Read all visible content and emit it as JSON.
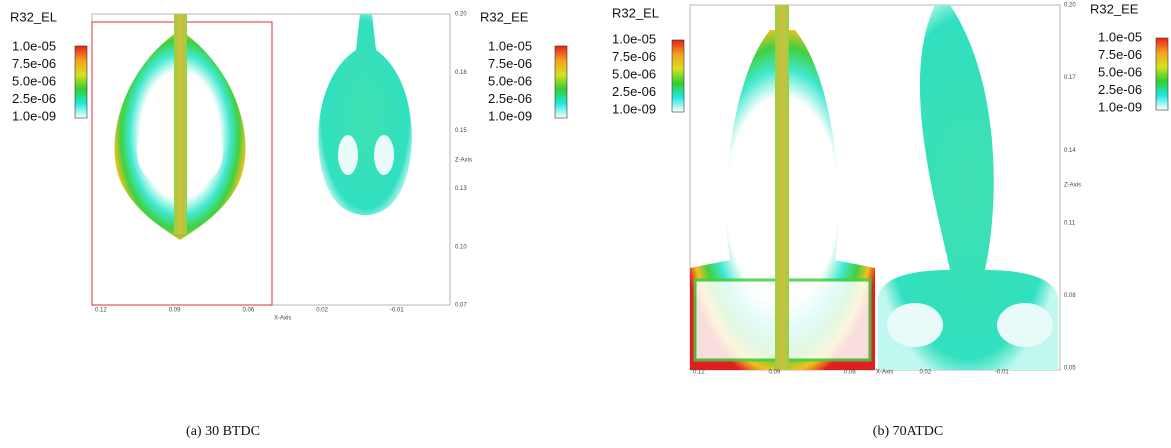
{
  "panels": [
    {
      "caption": "(a)  30 BTDC",
      "left_legend": {
        "title": "R32_EL",
        "labels": [
          "1.0e-05",
          "7.5e-06",
          "5.0e-06",
          "2.5e-06",
          "1.0e-09"
        ]
      },
      "right_legend": {
        "title": "R32_EE",
        "labels": [
          "1.0e-05",
          "7.5e-06",
          "5.0e-06",
          "2.5e-06",
          "1.0e-09"
        ]
      },
      "z_axis_label": "Z-Axis",
      "z_ticks": [
        "0.20",
        "0.18",
        "0.15",
        "0.13",
        "0.10",
        "0.07"
      ],
      "x_axis_label": "X-Axis",
      "x_ticks": [
        "0.12",
        "0.09",
        "0.06",
        "0.02",
        "-0.01"
      ]
    },
    {
      "caption": "(b)  70ATDC",
      "left_legend": {
        "title": "R32_EL",
        "labels": [
          "1.0e-05",
          "7.5e-06",
          "5.0e-06",
          "2.5e-06",
          "1.0e-09"
        ]
      },
      "right_legend": {
        "title": "R32_EE",
        "labels": [
          "1.0e-05",
          "7.5e-06",
          "5.0e-06",
          "2.5e-06",
          "1.0e-09"
        ]
      },
      "z_axis_label": "Z-Axis",
      "z_ticks": [
        "0.20",
        "0.17",
        "0.14",
        "0.11",
        "0.08",
        "0.05"
      ],
      "x_axis_label": "X-Axis",
      "x_ticks": [
        "0.12",
        "0.09",
        "0.06",
        "0.02",
        "-0.01"
      ]
    }
  ]
}
